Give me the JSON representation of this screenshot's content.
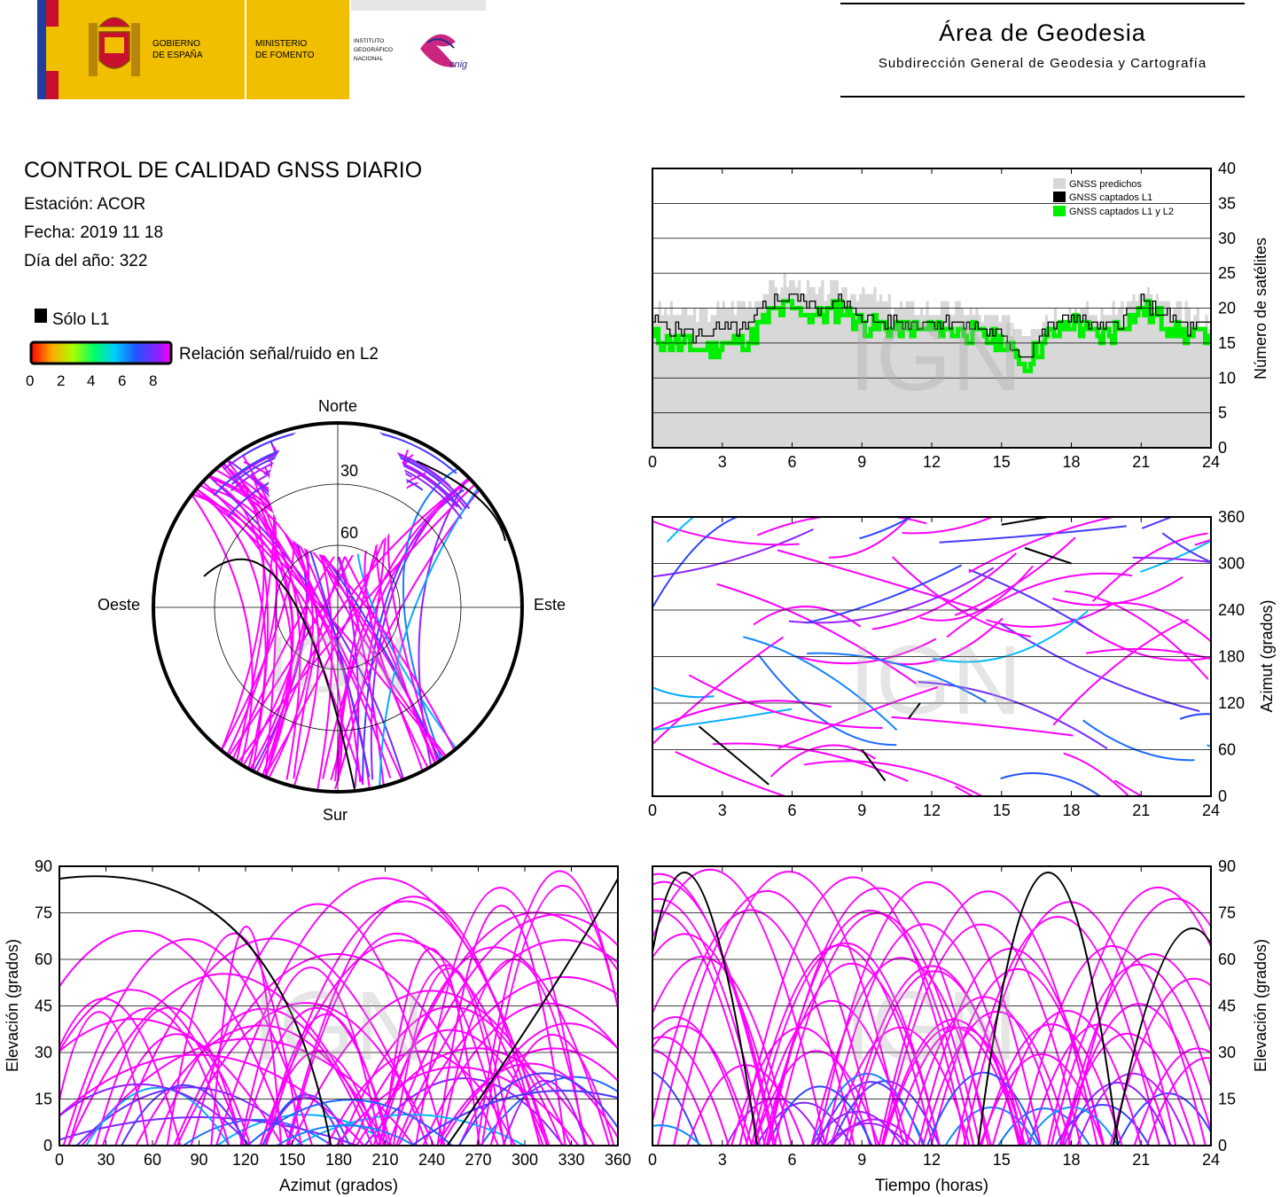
{
  "header": {
    "gov_left": "GOBIERNO",
    "gov_left2": "DE ESPAÑA",
    "ministry": "MINISTERIO",
    "ministry2": "DE FOMENTO",
    "institute": [
      "INSTITUTO",
      "GEOGRÁFICO",
      "NACIONAL"
    ],
    "cnig": "cnig",
    "area_title": "Área de Geodesia",
    "area_subtitle": "Subdirección General de Geodesia y Cartografía"
  },
  "info": {
    "title": "CONTROL DE CALIDAD GNSS DIARIO",
    "station": "Estación: ACOR",
    "date": "Fecha: 2019 11 18",
    "doy": "Día del año: 322"
  },
  "legend": {
    "only_l1": "Sólo L1",
    "snr_label": "Relación señal/ruido en L2",
    "ticks": [
      "0",
      "2",
      "4",
      "6",
      "8"
    ]
  },
  "watermark": "IGN",
  "colors": {
    "l1_only": "#000000",
    "snr_high": "#ff00ff",
    "predicted": "#d8d8d8",
    "l1l2": "#00ee00",
    "grid": "#000000"
  },
  "chart_data": [
    {
      "type": "area",
      "name": "satellite-count",
      "ylabel": "Número de satélites",
      "xlim": [
        0,
        24
      ],
      "ylim": [
        0,
        40
      ],
      "x_ticks": [
        "0",
        "3",
        "6",
        "9",
        "12",
        "15",
        "18",
        "21",
        "24"
      ],
      "y_ticks": [
        "0",
        "5",
        "10",
        "15",
        "20",
        "25",
        "30",
        "35",
        "40"
      ],
      "legend_position": "top-right",
      "series": [
        {
          "name": "GNSS predichos",
          "x": [
            0,
            1,
            2,
            3,
            4,
            5,
            6,
            7,
            8,
            9,
            10,
            11,
            12,
            13,
            14,
            15,
            16,
            17,
            18,
            19,
            20,
            21,
            22,
            23,
            24
          ],
          "values": [
            20,
            19,
            19,
            20,
            21,
            23,
            24,
            22,
            23,
            22,
            21,
            20,
            20,
            20,
            19,
            18,
            17,
            19,
            20,
            19,
            20,
            22,
            20,
            19,
            18
          ]
        },
        {
          "name": "GNSS captados L1",
          "x": [
            0,
            1,
            2,
            3,
            4,
            5,
            6,
            7,
            8,
            9,
            10,
            11,
            12,
            13,
            14,
            15,
            16,
            17,
            18,
            19,
            20,
            21,
            22,
            23,
            24
          ],
          "values": [
            18,
            17,
            16,
            17,
            17,
            21,
            22,
            20,
            21,
            19,
            18,
            18,
            18,
            18,
            17,
            16,
            13,
            17,
            19,
            17,
            18,
            21,
            19,
            17,
            17
          ]
        },
        {
          "name": "GNSS captados L1 y L2",
          "x": [
            0,
            1,
            2,
            3,
            4,
            5,
            6,
            7,
            8,
            9,
            10,
            11,
            12,
            13,
            14,
            15,
            16,
            17,
            18,
            19,
            20,
            21,
            22,
            23,
            24
          ],
          "values": [
            16,
            15,
            14,
            15,
            15,
            19,
            20,
            19,
            20,
            18,
            17,
            17,
            17,
            17,
            16,
            15,
            12,
            16,
            18,
            16,
            17,
            20,
            18,
            16,
            16
          ]
        }
      ]
    },
    {
      "type": "scatter",
      "name": "azimuth-time",
      "ylabel": "Azimut (grados)",
      "xlim": [
        0,
        24
      ],
      "ylim": [
        0,
        360
      ],
      "x_ticks": [
        "0",
        "3",
        "6",
        "9",
        "12",
        "15",
        "18",
        "21",
        "24"
      ],
      "y_ticks": [
        "0",
        "60",
        "120",
        "180",
        "240",
        "300",
        "360"
      ]
    },
    {
      "type": "scatter",
      "name": "elevation-azimuth",
      "xlabel": "Azimut (grados)",
      "ylabel": "Elevación (grados)",
      "xlim": [
        0,
        360
      ],
      "ylim": [
        0,
        90
      ],
      "x_ticks": [
        "0",
        "30",
        "60",
        "90",
        "120",
        "150",
        "180",
        "210",
        "240",
        "270",
        "300",
        "330",
        "360"
      ],
      "y_ticks": [
        "0",
        "15",
        "30",
        "45",
        "60",
        "75",
        "90"
      ]
    },
    {
      "type": "scatter",
      "name": "elevation-time",
      "xlabel": "Tiempo (horas)",
      "ylabel": "Elevación (grados)",
      "xlim": [
        0,
        24
      ],
      "ylim": [
        0,
        90
      ],
      "x_ticks": [
        "0",
        "3",
        "6",
        "9",
        "12",
        "15",
        "18",
        "21",
        "24"
      ],
      "y_ticks": [
        "0",
        "15",
        "30",
        "45",
        "60",
        "75",
        "90"
      ]
    },
    {
      "type": "scatter",
      "name": "skyplot",
      "labels": {
        "north": "Norte",
        "south": "Sur",
        "east": "Este",
        "west": "Oeste"
      },
      "rings": [
        "30",
        "60"
      ]
    }
  ]
}
